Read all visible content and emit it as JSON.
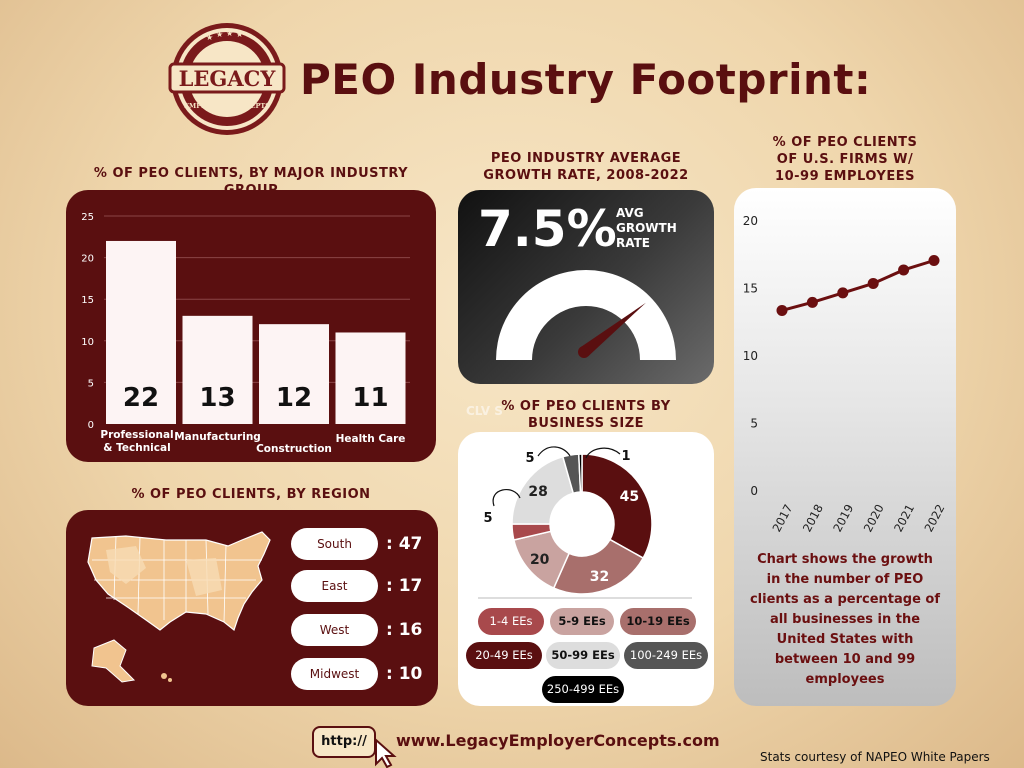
{
  "header": {
    "title": "PEO Industry Footprint:",
    "logo_text": "LEGACY",
    "logo_subtext": "EMPLOYER CONCEPTS"
  },
  "colors": {
    "maroon": "#5a0f10",
    "bar_fill": "#fdf4f4",
    "line_color": "#6b0f10"
  },
  "industry": {
    "heading": "% OF PEO CLIENTS, BY MAJOR INDUSTRY GROUP"
  },
  "growth": {
    "heading_line1": "PEO INDUSTRY AVERAGE",
    "heading_line2": "GROWTH RATE, 2008-2022",
    "value": "7.5%",
    "label_line1": "AVG",
    "label_line2": "GROWTH",
    "label_line3": "RATE",
    "gauge_level_percent": 75
  },
  "size": {
    "heading_line1": "% OF PEO CLIENTS BY",
    "heading_line2": "BUSINESS SIZE",
    "faint_text": "CLV S"
  },
  "region": {
    "heading": "% OF PEO CLIENTS, BY REGION",
    "items": [
      {
        "label": "South",
        "value": ": 47"
      },
      {
        "label": "East",
        "value": ": 17"
      },
      {
        "label": "West",
        "value": ": 16"
      },
      {
        "label": "Midwest",
        "value": ": 10"
      }
    ]
  },
  "firms": {
    "heading_line1": "% OF PEO CLIENTS",
    "heading_line2": "OF U.S. FIRMS W/",
    "heading_line3": "10-99 EMPLOYEES",
    "note": "Chart shows the growth in the number of PEO clients as a percentage of all businesses in the United States with between 10 and 99 employees"
  },
  "footer": {
    "url_prefix": "http://",
    "url": "www.LegacyEmployerConcepts.com",
    "credit": "Stats courtesy of NAPEO White Papers"
  },
  "chart_data": [
    {
      "type": "bar",
      "categories": [
        [
          "Professional",
          "& Technical"
        ],
        [
          "Manufacturing"
        ],
        [
          "Construction"
        ],
        [
          "Health Care"
        ]
      ],
      "values": [
        22,
        13,
        12,
        11
      ],
      "value_labels": [
        "22",
        "13",
        "12",
        "11"
      ],
      "ylim": [
        0,
        25
      ],
      "yticks": [
        "0",
        "5",
        "10",
        "15",
        "20",
        "25"
      ],
      "grid": true
    },
    {
      "type": "pie",
      "style": "donut",
      "categories": [
        "1-4 EEs",
        "5-9 EEs",
        "10-19 EEs",
        "20-49 EEs",
        "50-99 EEs",
        "100-249 EEs",
        "250-499 EEs"
      ],
      "values": [
        5,
        20,
        32,
        45,
        28,
        5,
        1
      ],
      "value_labels": [
        "5",
        "20",
        "32",
        "45",
        "28",
        "5",
        "1"
      ],
      "colors": [
        "#a8494c",
        "#c9a3a0",
        "#a86f6c",
        "#5a0f10",
        "#dddddd",
        "#555555",
        "#000000"
      ]
    },
    {
      "type": "line",
      "x": [
        "2017",
        "2018",
        "2019",
        "2020",
        "2021",
        "2022"
      ],
      "y": [
        13.3,
        13.9,
        14.6,
        15.3,
        16.3,
        17
      ],
      "ylim": [
        0,
        20
      ],
      "yticks": [
        "0",
        "5",
        "10",
        "15",
        "20"
      ],
      "grid": false
    }
  ]
}
